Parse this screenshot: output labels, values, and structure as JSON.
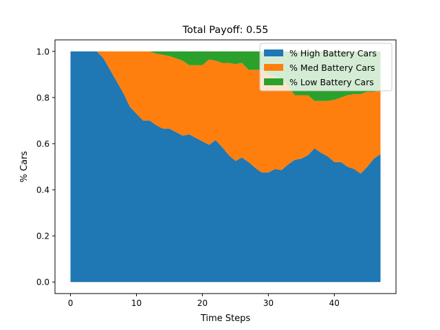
{
  "chart_data": {
    "type": "area",
    "title": "Total Payoff: 0.55",
    "xlabel": "Time Steps",
    "ylabel": "% Cars",
    "xlim": [
      -2.35,
      49.35
    ],
    "ylim": [
      -0.05,
      1.05
    ],
    "xticks": [
      0,
      10,
      20,
      30,
      40
    ],
    "xtick_labels": [
      "0",
      "10",
      "20",
      "30",
      "40"
    ],
    "yticks": [
      0.0,
      0.2,
      0.4,
      0.6,
      0.8,
      1.0
    ],
    "ytick_labels": [
      "0.0",
      "0.2",
      "0.4",
      "0.6",
      "0.8",
      "1.0"
    ],
    "grid": false,
    "legend_position": "top-right",
    "stacked": true,
    "x": [
      0,
      1,
      2,
      3,
      4,
      5,
      6,
      7,
      8,
      9,
      10,
      11,
      12,
      13,
      14,
      15,
      16,
      17,
      18,
      19,
      20,
      21,
      22,
      23,
      24,
      25,
      26,
      27,
      28,
      29,
      30,
      31,
      32,
      33,
      34,
      35,
      36,
      37,
      38,
      39,
      40,
      41,
      42,
      43,
      44,
      45,
      46,
      47
    ],
    "series": [
      {
        "name": "% High Battery Cars",
        "color": "#1f77b4",
        "values": [
          1.0,
          1.0,
          1.0,
          1.0,
          1.0,
          0.97,
          0.92,
          0.87,
          0.82,
          0.76,
          0.73,
          0.7,
          0.7,
          0.68,
          0.665,
          0.665,
          0.65,
          0.635,
          0.64,
          0.625,
          0.61,
          0.595,
          0.615,
          0.585,
          0.55,
          0.525,
          0.54,
          0.52,
          0.495,
          0.475,
          0.475,
          0.49,
          0.485,
          0.51,
          0.53,
          0.535,
          0.55,
          0.58,
          0.56,
          0.545,
          0.52,
          0.52,
          0.5,
          0.49,
          0.47,
          0.5,
          0.535,
          0.555
        ]
      },
      {
        "name": "% Med Battery Cars",
        "color": "#ff7f0e",
        "values": [
          0.0,
          0.0,
          0.0,
          0.0,
          0.0,
          0.03,
          0.08,
          0.13,
          0.18,
          0.24,
          0.27,
          0.3,
          0.3,
          0.31,
          0.32,
          0.315,
          0.32,
          0.325,
          0.3,
          0.315,
          0.33,
          0.37,
          0.345,
          0.365,
          0.4,
          0.42,
          0.41,
          0.4,
          0.425,
          0.445,
          0.425,
          0.4,
          0.395,
          0.34,
          0.28,
          0.275,
          0.26,
          0.205,
          0.225,
          0.24,
          0.27,
          0.28,
          0.31,
          0.325,
          0.345,
          0.325,
          0.29,
          0.275
        ]
      },
      {
        "name": "% Low Battery Cars",
        "color": "#2ca02c",
        "values": [
          0.0,
          0.0,
          0.0,
          0.0,
          0.0,
          0.0,
          0.0,
          0.0,
          0.0,
          0.0,
          0.0,
          0.0,
          0.0,
          0.01,
          0.015,
          0.02,
          0.03,
          0.04,
          0.06,
          0.06,
          0.06,
          0.035,
          0.04,
          0.05,
          0.05,
          0.055,
          0.05,
          0.08,
          0.08,
          0.08,
          0.1,
          0.11,
          0.12,
          0.15,
          0.19,
          0.19,
          0.19,
          0.215,
          0.215,
          0.215,
          0.21,
          0.2,
          0.19,
          0.185,
          0.185,
          0.175,
          0.175,
          0.17
        ]
      }
    ]
  }
}
